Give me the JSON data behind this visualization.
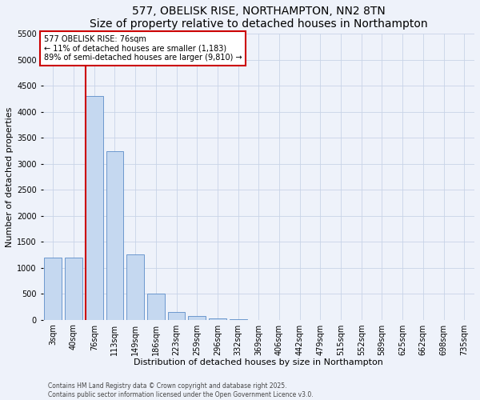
{
  "title": "577, OBELISK RISE, NORTHAMPTON, NN2 8TN",
  "subtitle": "Size of property relative to detached houses in Northampton",
  "xlabel": "Distribution of detached houses by size in Northampton",
  "ylabel": "Number of detached properties",
  "categories": [
    "3sqm",
    "40sqm",
    "76sqm",
    "113sqm",
    "149sqm",
    "186sqm",
    "223sqm",
    "259sqm",
    "296sqm",
    "332sqm",
    "369sqm",
    "406sqm",
    "442sqm",
    "479sqm",
    "515sqm",
    "552sqm",
    "589sqm",
    "625sqm",
    "662sqm",
    "698sqm",
    "735sqm"
  ],
  "values": [
    1200,
    1200,
    4300,
    3250,
    1250,
    500,
    150,
    70,
    30,
    5,
    0,
    0,
    0,
    0,
    0,
    0,
    0,
    0,
    0,
    0,
    0
  ],
  "bar_color": "#c5d8f0",
  "bar_edge_color": "#5b8cc8",
  "vline_color": "#cc0000",
  "annotation_text": "577 OBELISK RISE: 76sqm\n← 11% of detached houses are smaller (1,183)\n89% of semi-detached houses are larger (9,810) →",
  "annotation_box_color": "#ffffff",
  "annotation_box_edge": "#cc0000",
  "ylim_max": 5500,
  "yticks": [
    0,
    500,
    1000,
    1500,
    2000,
    2500,
    3000,
    3500,
    4000,
    4500,
    5000,
    5500
  ],
  "footer1": "Contains HM Land Registry data © Crown copyright and database right 2025.",
  "footer2": "Contains public sector information licensed under the Open Government Licence v3.0.",
  "bg_color": "#eef2fa",
  "grid_color": "#c8d4e8",
  "title_fontsize": 10,
  "axis_label_fontsize": 8,
  "tick_fontsize": 7,
  "annot_fontsize": 7,
  "footer_fontsize": 5.5
}
